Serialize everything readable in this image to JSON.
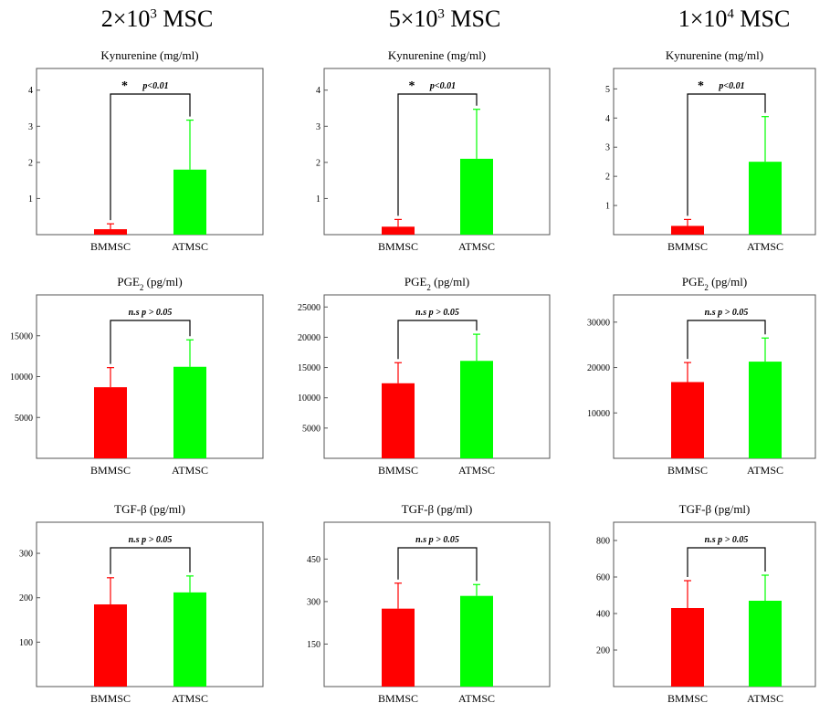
{
  "columns": [
    {
      "base": "2×10",
      "exp": "3",
      "suffix": " MSC"
    },
    {
      "base": "5×10",
      "exp": "3",
      "suffix": " MSC"
    },
    {
      "base": "1×10",
      "exp": "4",
      "suffix": " MSC"
    }
  ],
  "colors": {
    "bmmsc": "#ff0000",
    "atmsc": "#00ff00"
  },
  "chart_data": [
    {
      "type": "bar",
      "title": "Kynurenine (mg/ml)",
      "categories": [
        "BMMSC",
        "ATMSC"
      ],
      "values": [
        0.15,
        1.8
      ],
      "errors": [
        0.15,
        1.37
      ],
      "ylim": [
        0,
        4.6
      ],
      "yticks": [
        1,
        2,
        3,
        4
      ],
      "significance": {
        "star": "*",
        "label": "p<0.01"
      }
    },
    {
      "type": "bar",
      "title": "Kynurenine (mg/ml)",
      "categories": [
        "BMMSC",
        "ATMSC"
      ],
      "values": [
        0.22,
        2.1
      ],
      "errors": [
        0.2,
        1.37
      ],
      "ylim": [
        0,
        4.6
      ],
      "yticks": [
        1,
        2,
        3,
        4
      ],
      "significance": {
        "star": "*",
        "label": "p<0.01"
      }
    },
    {
      "type": "bar",
      "title": "Kynurenine (mg/ml)",
      "categories": [
        "BMMSC",
        "ATMSC"
      ],
      "values": [
        0.3,
        2.5
      ],
      "errors": [
        0.22,
        1.55
      ],
      "ylim": [
        0,
        5.7
      ],
      "yticks": [
        1,
        2,
        3,
        4,
        5
      ],
      "significance": {
        "star": "*",
        "label": "p<0.01"
      }
    },
    {
      "type": "bar",
      "title": "PGE",
      "title_sub": "2",
      "title_rest": " (pg/ml)",
      "categories": [
        "BMMSC",
        "ATMSC"
      ],
      "values": [
        8700,
        11200
      ],
      "errors": [
        2400,
        3300
      ],
      "ylim": [
        0,
        20000
      ],
      "yticks": [
        5000,
        10000,
        15000
      ],
      "significance": {
        "star": "",
        "label": "n.s p > 0.05"
      }
    },
    {
      "type": "bar",
      "title": "PGE",
      "title_sub": "2",
      "title_rest": " (pg/ml)",
      "categories": [
        "BMMSC",
        "ATMSC"
      ],
      "values": [
        12400,
        16100
      ],
      "errors": [
        3400,
        4400
      ],
      "ylim": [
        0,
        27000
      ],
      "yticks": [
        5000,
        10000,
        15000,
        20000,
        25000
      ],
      "significance": {
        "star": "",
        "label": "n.s p > 0.05"
      }
    },
    {
      "type": "bar",
      "title": "PGE",
      "title_sub": "2",
      "title_rest": " (pg/ml)",
      "categories": [
        "BMMSC",
        "ATMSC"
      ],
      "values": [
        16800,
        21300
      ],
      "errors": [
        4300,
        5200
      ],
      "ylim": [
        0,
        36000
      ],
      "yticks": [
        10000,
        20000,
        30000
      ],
      "significance": {
        "star": "",
        "label": "n.s p > 0.05"
      }
    },
    {
      "type": "bar",
      "title": "TGF-β  (pg/ml)",
      "categories": [
        "BMMSC",
        "ATMSC"
      ],
      "values": [
        185,
        212
      ],
      "errors": [
        60,
        37
      ],
      "ylim": [
        0,
        370
      ],
      "yticks": [
        100,
        200,
        300
      ],
      "significance": {
        "star": "",
        "label": "n.s p > 0.05"
      }
    },
    {
      "type": "bar",
      "title": "TGF-β  (pg/ml)",
      "categories": [
        "BMMSC",
        "ATMSC"
      ],
      "values": [
        275,
        320
      ],
      "errors": [
        90,
        40
      ],
      "ylim": [
        0,
        580
      ],
      "yticks": [
        150,
        300,
        450
      ],
      "significance": {
        "star": "",
        "label": "n.s p > 0.05"
      }
    },
    {
      "type": "bar",
      "title": "TGF-β  (pg/ml)",
      "categories": [
        "BMMSC",
        "ATMSC"
      ],
      "values": [
        430,
        470
      ],
      "errors": [
        150,
        140
      ],
      "ylim": [
        0,
        900
      ],
      "yticks": [
        200,
        400,
        600,
        800
      ],
      "significance": {
        "star": "",
        "label": "n.s p > 0.05"
      }
    }
  ]
}
